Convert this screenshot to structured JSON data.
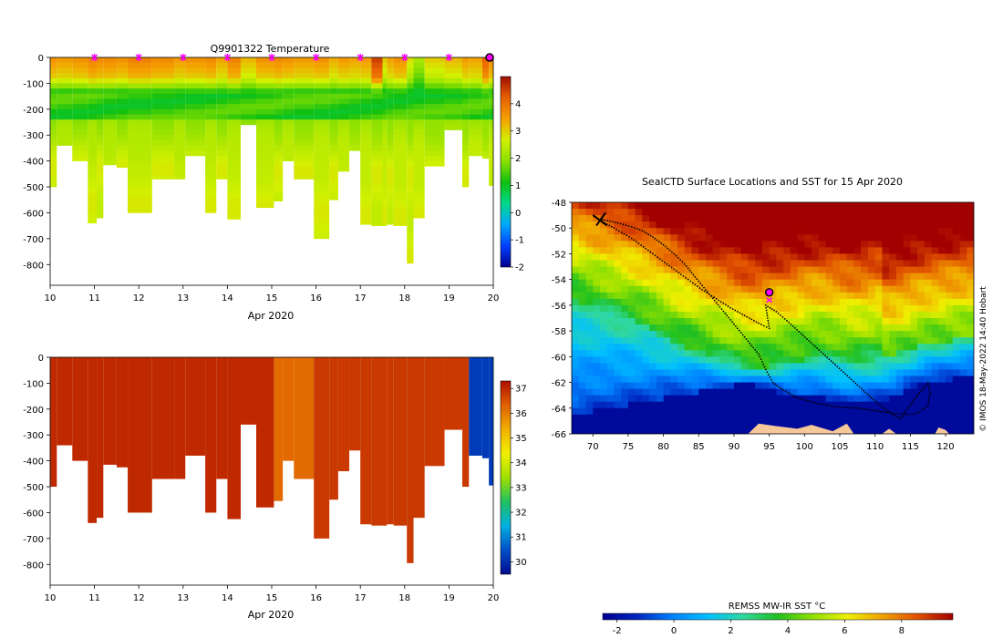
{
  "colors": {
    "temp_scale": [
      "#00008f",
      "#0040ff",
      "#00a8ff",
      "#00d88a",
      "#10c010",
      "#8ce000",
      "#d2f000",
      "#f5a000",
      "#e86000",
      "#a01000"
    ],
    "salt_scale": [
      "#000a8f",
      "#0050c8",
      "#00b0e0",
      "#20c060",
      "#a0e000",
      "#f0f000",
      "#f0b000",
      "#e06000",
      "#b01000"
    ],
    "sst_scale": [
      "#00008f",
      "#0028c0",
      "#0080ff",
      "#00c0ff",
      "#30d8a0",
      "#20c020",
      "#90e000",
      "#f0f000",
      "#f0a000",
      "#e05000",
      "#a00000"
    ],
    "land": "#f5c89a",
    "track": "#000000",
    "marker": "#ff00ff"
  },
  "chart_data": [
    {
      "type": "heatmap",
      "title": "Q9901322  Temperature",
      "xlabel": "Apr 2020",
      "ylabel": "",
      "x_ticks": [
        "10",
        "11",
        "12",
        "13",
        "14",
        "15",
        "16",
        "17",
        "18",
        "19",
        "20"
      ],
      "y_ticks": [
        "0",
        "-100",
        "-200",
        "-300",
        "-400",
        "-500",
        "-600",
        "-700",
        "-800"
      ],
      "xlim": [
        10,
        20
      ],
      "ylim": [
        -880,
        0
      ],
      "colorbar_ticks": [
        "4",
        "3",
        "2",
        "1",
        "0",
        "-1",
        "-2"
      ],
      "colorbar_range": [
        -2,
        5
      ],
      "marker_days": [
        11,
        12,
        13,
        14,
        15,
        16,
        17,
        18,
        19,
        20
      ],
      "profiles": {
        "start_day": [
          10.0,
          10.15,
          10.5,
          10.85,
          11.05,
          11.2,
          11.5,
          11.75,
          12.3,
          12.8,
          13.05,
          13.5,
          13.75,
          14.0,
          14.3,
          14.65,
          15.05,
          15.25,
          15.5,
          15.95,
          16.3,
          16.5,
          16.75,
          17.0,
          17.25,
          17.5,
          17.6,
          17.75,
          18.05,
          18.2,
          18.45,
          18.9,
          19.3,
          19.45,
          19.75,
          19.9
        ],
        "end_day": [
          10.15,
          10.5,
          10.85,
          11.05,
          11.2,
          11.5,
          11.75,
          12.3,
          12.8,
          13.05,
          13.5,
          13.75,
          14.0,
          14.3,
          14.65,
          15.05,
          15.25,
          15.5,
          15.95,
          16.3,
          16.5,
          16.75,
          17.0,
          17.25,
          17.5,
          17.6,
          17.75,
          18.05,
          18.2,
          18.45,
          18.9,
          19.3,
          19.45,
          19.75,
          19.9,
          20.1
        ],
        "max_depth": [
          500,
          340,
          400,
          640,
          620,
          415,
          425,
          600,
          470,
          470,
          380,
          600,
          470,
          625,
          260,
          580,
          555,
          400,
          470,
          700,
          550,
          440,
          360,
          645,
          650,
          650,
          645,
          650,
          795,
          620,
          420,
          280,
          500,
          380,
          390,
          495
        ],
        "surface_temp": [
          3.6,
          3.5,
          3.6,
          3.8,
          3.7,
          3.7,
          3.6,
          3.8,
          3.7,
          3.5,
          3.6,
          3.7,
          3.4,
          3.8,
          3.2,
          3.6,
          3.7,
          3.6,
          3.5,
          3.6,
          3.3,
          3.5,
          3.4,
          3.5,
          4.5,
          3.0,
          3.4,
          3.6,
          2.8,
          2.2,
          3.0,
          3.2,
          3.5,
          3.4,
          4.2,
          3.7
        ]
      }
    },
    {
      "type": "heatmap",
      "title": "",
      "xlabel": "Apr 2020",
      "ylabel": "",
      "x_ticks": [
        "10",
        "11",
        "12",
        "13",
        "14",
        "15",
        "16",
        "17",
        "18",
        "19",
        "20"
      ],
      "y_ticks": [
        "0",
        "-100",
        "-200",
        "-300",
        "-400",
        "-500",
        "-600",
        "-700",
        "-800"
      ],
      "xlim": [
        10,
        20
      ],
      "ylim": [
        -880,
        0
      ],
      "colorbar_ticks": [
        "37",
        "36",
        "35",
        "34",
        "33",
        "32",
        "31",
        "30"
      ],
      "colorbar_range": [
        29.5,
        37.3
      ],
      "segments": [
        {
          "start_day": 10.0,
          "end_day": 15.05,
          "value": 37.0
        },
        {
          "start_day": 15.05,
          "end_day": 15.95,
          "value": 36.2
        },
        {
          "start_day": 15.95,
          "end_day": 19.45,
          "value": 36.8
        },
        {
          "start_day": 19.45,
          "end_day": 20.1,
          "value": 30.2
        }
      ]
    },
    {
      "type": "heatmap",
      "title": "SealCTD Surface Locations and SST for 15 Apr 2020",
      "xlabel": "",
      "ylabel": "",
      "x_ticks": [
        "70",
        "75",
        "80",
        "85",
        "90",
        "95",
        "100",
        "105",
        "110",
        "115",
        "120"
      ],
      "y_ticks": [
        "-48",
        "-50",
        "-52",
        "-54",
        "-56",
        "-58",
        "-60",
        "-62",
        "-64",
        "-66"
      ],
      "xlim": [
        67,
        124
      ],
      "ylim": [
        -66,
        -48
      ],
      "colorbar_label": "REMSS MW-IR SST °C",
      "colorbar_ticks": [
        "-2",
        "0",
        "2",
        "4",
        "6",
        "8"
      ],
      "colorbar_range": [
        -2.5,
        9.8
      ],
      "track": {
        "lon": [
          71.0,
          73.0,
          75.5,
          77.5,
          79.5,
          81.5,
          83.5,
          85.5,
          87.5,
          89.5,
          91.5,
          93.5,
          95.0,
          94.5,
          96.0,
          97.5,
          99.5,
          101.5,
          103.5,
          105.5,
          107.5,
          109.5,
          111.0,
          112.5,
          113.5,
          114.0,
          114.2,
          115.0,
          116.0,
          117.0,
          117.5,
          117.8,
          117.5,
          116.0,
          114.5,
          112.5,
          110.0,
          107.5,
          104.5,
          101.5,
          99.0,
          97.0,
          95.5,
          94.5,
          93.5,
          92.0,
          90.5,
          89.0,
          87.5,
          86.0,
          84.5,
          83.0,
          81.5,
          80.0,
          78.5,
          77.0,
          75.5,
          73.5,
          71.0
        ],
        "lat": [
          -49.4,
          -50.0,
          -50.8,
          -51.6,
          -52.4,
          -53.2,
          -54.0,
          -54.8,
          -55.5,
          -56.2,
          -56.8,
          -57.4,
          -57.8,
          -56.0,
          -56.5,
          -57.2,
          -58.2,
          -59.2,
          -60.2,
          -61.2,
          -62.2,
          -63.2,
          -63.9,
          -64.5,
          -64.8,
          -64.6,
          -64.3,
          -63.8,
          -63.0,
          -62.4,
          -62.0,
          -62.8,
          -63.8,
          -64.4,
          -64.5,
          -64.4,
          -64.2,
          -64.0,
          -63.9,
          -63.6,
          -63.2,
          -62.6,
          -62.0,
          -61.0,
          -59.8,
          -58.8,
          -57.8,
          -56.8,
          -55.8,
          -54.8,
          -53.8,
          -52.8,
          -52.0,
          -51.3,
          -50.7,
          -50.2,
          -49.9,
          -49.6,
          -49.3
        ]
      },
      "sst_field": {
        "lon_knots": [
          67,
          72,
          77,
          82,
          87,
          92,
          97,
          102,
          107,
          112,
          117,
          124
        ],
        "front_lat": [
          -55.5,
          -56.5,
          -57.5,
          -59.0,
          -60.0,
          -61.0,
          -60.5,
          -60.0,
          -60.5,
          -60.0,
          -59.0,
          -58.5
        ],
        "ice_lat": [
          -64.5,
          -64.0,
          -63.6,
          -63.0,
          -62.5,
          -62.0,
          -63.0,
          -63.2,
          -63.5,
          -63.3,
          -62.0,
          -61.5
        ]
      },
      "current_position": {
        "lon": 95.0,
        "lat": -55.0
      }
    }
  ],
  "credit": "© IMOS 18-May-2022 14:40 Hobart"
}
